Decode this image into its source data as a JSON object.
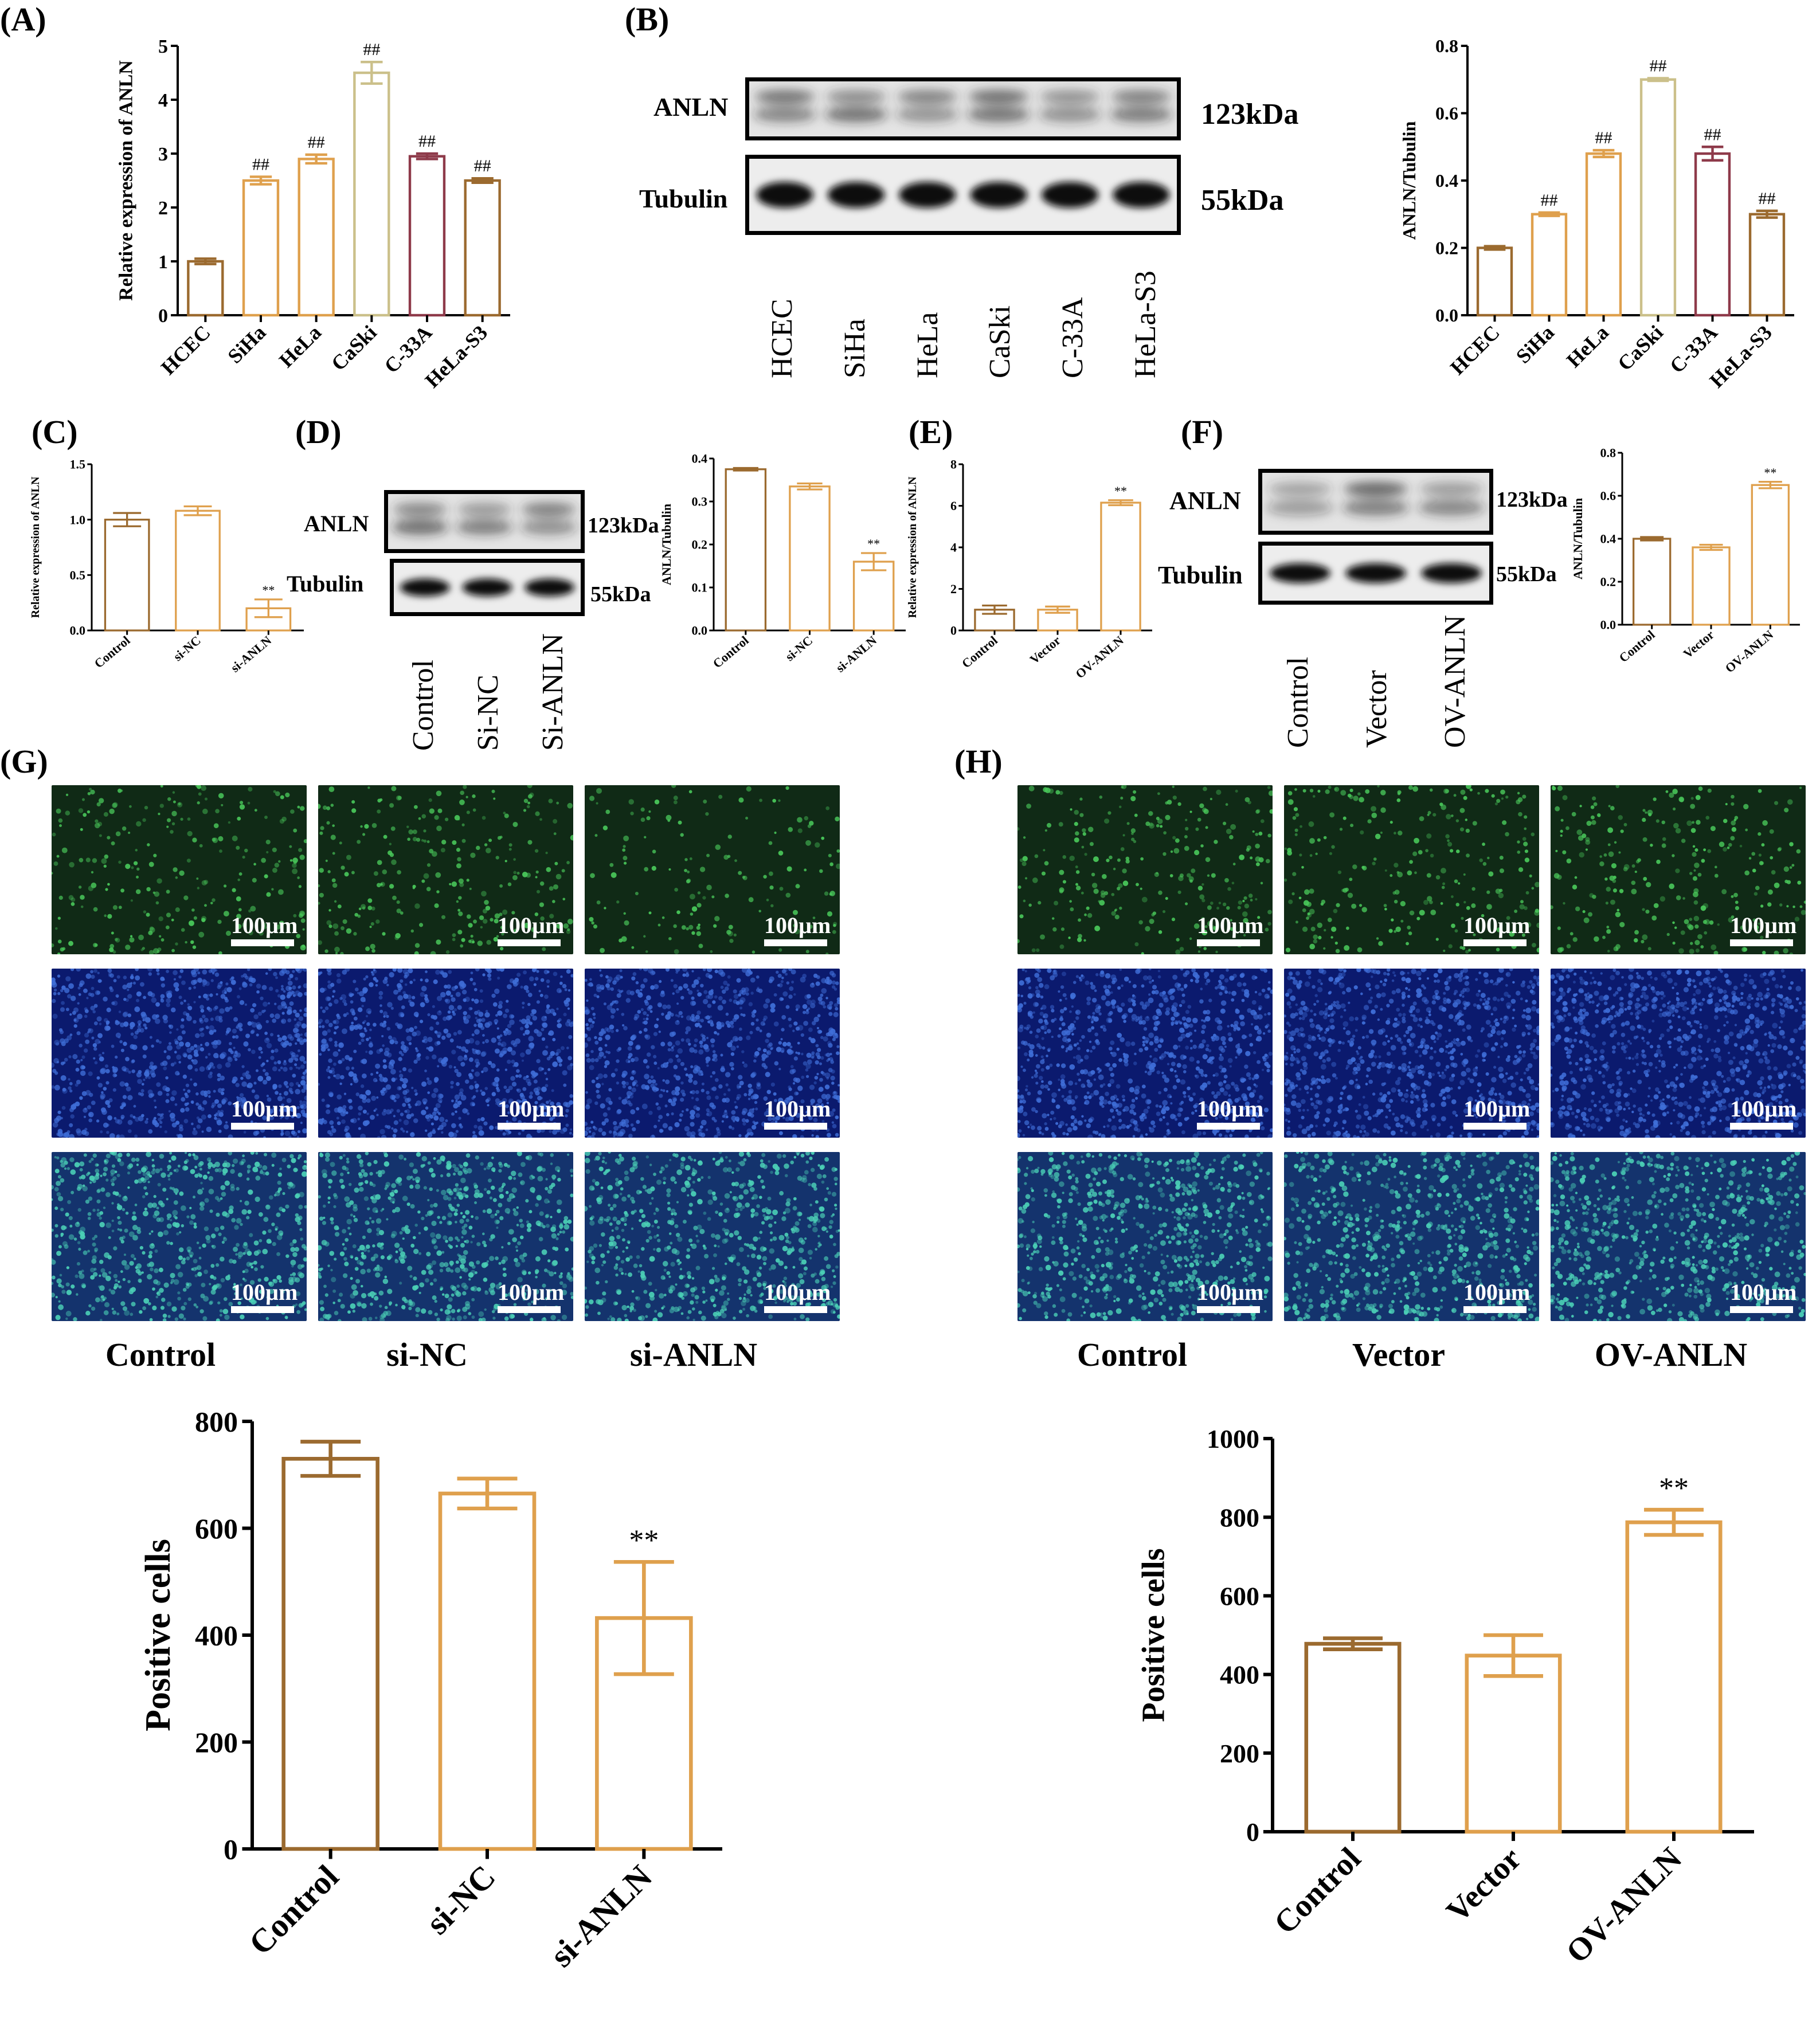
{
  "panel_labels": [
    "(A)",
    "(B)",
    "(C)",
    "(D)",
    "(E)",
    "(F)",
    "(G)",
    "(H)"
  ],
  "colors": {
    "brown": "#9B6A2F",
    "orange": "#DFA04D",
    "khaki": "#CBC08A",
    "maroon": "#8E3A4A",
    "sand": "#C9A26A",
    "green_bg": "#102a16",
    "green_cell": "#49c85a",
    "blue_bg": "#0b1a6e",
    "blue_cell": "#3f6ed8",
    "merge_bg": "#14336d",
    "merge_cell": "#4bd0b6"
  },
  "blots": {
    "B": {
      "protein": "ANLN",
      "protein_kda": "123kDa",
      "loading": "Tubulin",
      "loading_kda": "55kDa",
      "lanes": [
        "HCEC",
        "SiHa",
        "HeLa",
        "CaSki",
        "C-33A",
        "HeLa-S3"
      ]
    },
    "D": {
      "protein": "ANLN",
      "protein_kda": "123kDa",
      "loading": "Tubulin",
      "loading_kda": "55kDa",
      "lanes": [
        "Control",
        "Si-NC",
        "Si-ANLN"
      ]
    },
    "F": {
      "protein": "ANLN",
      "protein_kda": "123kDa",
      "loading": "Tubulin",
      "loading_kda": "55kDa",
      "lanes": [
        "Control",
        "Vector",
        "OV-ANLN"
      ]
    }
  },
  "microscopy": {
    "scale_bar": "100µm",
    "G": {
      "labels": [
        "Control",
        "si-NC",
        "si-ANLN"
      ]
    },
    "H": {
      "labels": [
        "Control",
        "Vector",
        "OV-ANLN"
      ]
    }
  },
  "chart_data": [
    {
      "id": "A",
      "type": "bar",
      "title": "",
      "ylabel": "Relative expression of ANLN",
      "categories": [
        "HCEC",
        "SiHa",
        "HeLa",
        "CaSki",
        "C-33A",
        "HeLa-S3"
      ],
      "values": [
        1.0,
        2.5,
        2.9,
        4.5,
        2.95,
        2.5
      ],
      "errors": [
        0.05,
        0.07,
        0.08,
        0.2,
        0.05,
        0.04
      ],
      "annotations": [
        "",
        "##",
        "##",
        "##",
        "##",
        "##"
      ],
      "ylim": [
        0,
        5
      ],
      "yticks": [
        0,
        1,
        2,
        3,
        4,
        5
      ],
      "bar_colors": [
        "brown",
        "orange",
        "orange",
        "khaki",
        "maroon",
        "brown"
      ]
    },
    {
      "id": "B",
      "type": "bar",
      "title": "",
      "ylabel": "ANLN/Tubulin",
      "categories": [
        "HCEC",
        "SiHa",
        "HeLa",
        "CaSki",
        "C-33A",
        "HeLa-S3"
      ],
      "values": [
        0.2,
        0.3,
        0.48,
        0.7,
        0.48,
        0.3
      ],
      "errors": [
        0.005,
        0.005,
        0.01,
        0.004,
        0.02,
        0.01
      ],
      "annotations": [
        "",
        "##",
        "##",
        "##",
        "##",
        "##"
      ],
      "ylim": [
        0,
        0.8
      ],
      "yticks": [
        "0.0",
        "0.2",
        "0.4",
        "0.6",
        "0.8"
      ],
      "bar_colors": [
        "brown",
        "orange",
        "orange",
        "khaki",
        "maroon",
        "brown"
      ]
    },
    {
      "id": "C",
      "type": "bar",
      "title": "",
      "ylabel": "Relative expression of ANLN",
      "categories": [
        "Control",
        "si-NC",
        "si-ANLN"
      ],
      "values": [
        1.0,
        1.08,
        0.2
      ],
      "errors": [
        0.06,
        0.04,
        0.08
      ],
      "annotations": [
        "",
        "",
        "**"
      ],
      "ylim": [
        0,
        1.5
      ],
      "yticks": [
        "0.0",
        "0.5",
        "1.0",
        "1.5"
      ],
      "bar_colors": [
        "brown",
        "orange",
        "orange"
      ]
    },
    {
      "id": "D",
      "type": "bar",
      "title": "",
      "ylabel": "ANLN/Tubulin",
      "categories": [
        "Control",
        "si-NC",
        "si-ANLN"
      ],
      "values": [
        0.375,
        0.335,
        0.16
      ],
      "errors": [
        0.003,
        0.007,
        0.02
      ],
      "annotations": [
        "",
        "",
        "**"
      ],
      "ylim": [
        0,
        0.4
      ],
      "yticks": [
        "0.0",
        "0.1",
        "0.2",
        "0.3",
        "0.4"
      ],
      "bar_colors": [
        "brown",
        "orange",
        "orange"
      ]
    },
    {
      "id": "E",
      "type": "bar",
      "title": "",
      "ylabel": "Relative expression of ANLN",
      "categories": [
        "Control",
        "Vector",
        "OV-ANLN"
      ],
      "values": [
        1.0,
        1.0,
        6.15
      ],
      "errors": [
        0.2,
        0.15,
        0.12
      ],
      "annotations": [
        "",
        "",
        "**"
      ],
      "ylim": [
        0,
        8
      ],
      "yticks": [
        0,
        2,
        4,
        6,
        8
      ],
      "bar_colors": [
        "brown",
        "orange",
        "orange"
      ]
    },
    {
      "id": "F",
      "type": "bar",
      "title": "",
      "ylabel": "ANLN/Tubulin",
      "categories": [
        "Control",
        "Vector",
        "OV-ANLN"
      ],
      "values": [
        0.4,
        0.36,
        0.65
      ],
      "errors": [
        0.008,
        0.012,
        0.015
      ],
      "annotations": [
        "",
        "",
        "**"
      ],
      "ylim": [
        0,
        0.8
      ],
      "yticks": [
        "0.0",
        "0.2",
        "0.4",
        "0.6",
        "0.8"
      ],
      "bar_colors": [
        "brown",
        "orange",
        "orange"
      ]
    },
    {
      "id": "G",
      "type": "bar",
      "title": "",
      "ylabel": "Positive cells",
      "categories": [
        "Control",
        "si-NC",
        "si-ANLN"
      ],
      "values": [
        730,
        665,
        432
      ],
      "errors": [
        32,
        28,
        105
      ],
      "annotations": [
        "",
        "",
        "**"
      ],
      "ylim": [
        0,
        800
      ],
      "yticks": [
        0,
        200,
        400,
        600,
        800
      ],
      "bar_colors": [
        "brown",
        "orange",
        "orange"
      ]
    },
    {
      "id": "H",
      "type": "bar",
      "title": "",
      "ylabel": "Positive cells",
      "categories": [
        "Control",
        "Vector",
        "OV-ANLN"
      ],
      "values": [
        478,
        448,
        787
      ],
      "errors": [
        14,
        52,
        32
      ],
      "annotations": [
        "",
        "",
        "**"
      ],
      "ylim": [
        0,
        1000
      ],
      "yticks": [
        0,
        200,
        400,
        600,
        800,
        1000
      ],
      "bar_colors": [
        "brown",
        "orange",
        "orange"
      ]
    }
  ]
}
